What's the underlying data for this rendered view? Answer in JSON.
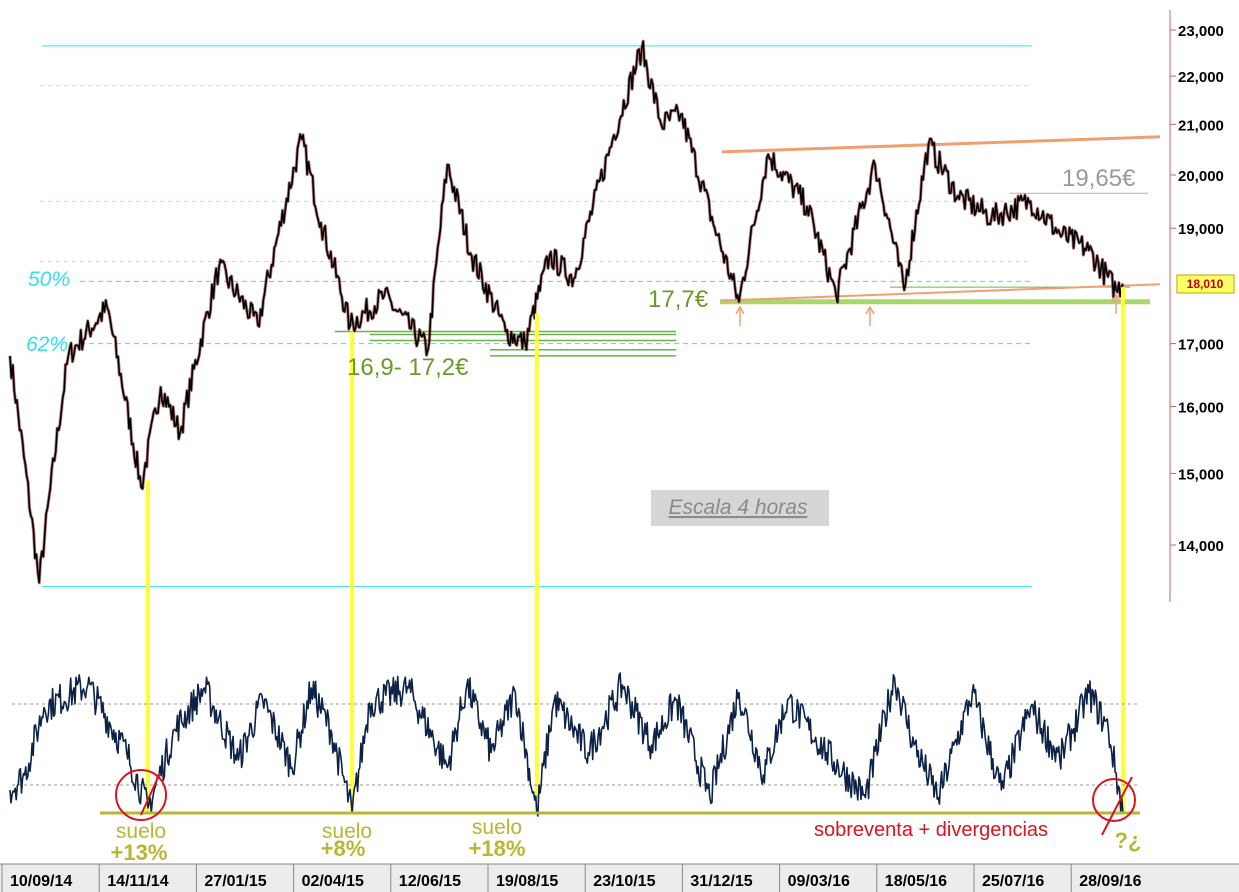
{
  "chart_data": {
    "type": "line",
    "price_axis": {
      "ticks": [
        "23,000",
        "22,000",
        "21,000",
        "20,000",
        "19,000",
        "17,000",
        "16,000",
        "15,000",
        "14,000"
      ],
      "tick_values": [
        23,
        22,
        21,
        20,
        19,
        17,
        16,
        15,
        14
      ],
      "scale": "log",
      "ylim": [
        13.3,
        23.4
      ]
    },
    "x_axis": {
      "labels": [
        "10/09/14",
        "14/11/14",
        "27/01/15",
        "02/04/15",
        "12/06/15",
        "19/08/15",
        "23/10/15",
        "31/12/15",
        "09/03/16",
        "18/05/16",
        "25/07/16",
        "28/09/16"
      ]
    },
    "price_series": {
      "x": [
        0,
        0.3,
        0.6,
        1,
        1.35,
        1.55,
        1.75,
        2.15,
        2.55,
        3,
        3.2,
        3.5,
        3.85,
        4.3,
        4.5,
        4.75,
        5.1,
        5.3,
        5.55,
        5.8,
        6.2,
        6.5,
        6.7,
        6.9,
        7.25,
        7.5,
        7.8,
        8.2,
        8.5,
        8.9,
        9.2,
        9.45,
        9.75,
        10.1,
        10.5,
        10.8,
        11.1,
        11.38,
        11.45
      ],
      "values": [
        16.8,
        13.5,
        16.8,
        17.6,
        14.8,
        16.3,
        15.6,
        18.3,
        17.3,
        20.7,
        19.1,
        17.3,
        17.8,
        16.9,
        20.2,
        18.5,
        17.2,
        17.0,
        18.5,
        18.1,
        20.7,
        22.6,
        21.0,
        21.2,
        19.0,
        17.7,
        20.4,
        19.4,
        17.8,
        20.2,
        17.9,
        20.6,
        19.6,
        19.2,
        19.5,
        18.9,
        18.6,
        17.9,
        18.01
      ]
    },
    "retracement_levels": [
      {
        "label": "50%",
        "value": 18.05
      },
      {
        "label": "62%",
        "value": 17.0
      }
    ],
    "support_levels": [
      {
        "label": "16,9- 17,2€",
        "values": [
          16.8,
          16.9,
          17.05,
          17.15,
          17.2
        ]
      },
      {
        "label": "17,7€",
        "value": 17.7
      }
    ],
    "resistance_level": {
      "label": "19,65€",
      "value": 19.65
    },
    "last_price_badge": "18,010",
    "annotation_note": "Escala 4 horas",
    "oscillator": {
      "x": [
        0,
        0.15,
        0.35,
        0.8,
        1.2,
        1.42,
        1.7,
        2.0,
        2.35,
        2.6,
        2.9,
        3.1,
        3.3,
        3.52,
        3.7,
        4.1,
        4.5,
        4.7,
        4.95,
        5.2,
        5.42,
        5.6,
        5.95,
        6.3,
        6.6,
        6.85,
        7.2,
        7.5,
        7.75,
        8.0,
        8.4,
        8.8,
        9.1,
        9.3,
        9.55,
        9.9,
        10.2,
        10.5,
        10.8,
        11.1,
        11.3,
        11.45
      ],
      "values": [
        20,
        30,
        75,
        90,
        45,
        8,
        60,
        88,
        40,
        80,
        35,
        88,
        60,
        5,
        78,
        88,
        35,
        90,
        45,
        85,
        5,
        80,
        45,
        90,
        50,
        80,
        15,
        85,
        30,
        80,
        45,
        15,
        95,
        50,
        15,
        85,
        20,
        75,
        40,
        85,
        60,
        5
      ]
    },
    "floors": [
      {
        "label": "suelo",
        "gain": "+13%"
      },
      {
        "label": "suelo",
        "gain": "+8%"
      },
      {
        "label": "suelo",
        "gain": "+18%"
      }
    ],
    "current_signal": {
      "label": "sobreventa + divergencias",
      "mark": "?¿"
    },
    "grid": true
  },
  "colors": {
    "price_line": "#000000",
    "retracement": "#33e0f0",
    "support": "#6ab04c",
    "trend_channel": "#f0a070",
    "vertical_marker": "#ffff33",
    "oscillator_line": "#0d2247",
    "floor_line": "#b8b632",
    "circle": "#d8141e"
  }
}
